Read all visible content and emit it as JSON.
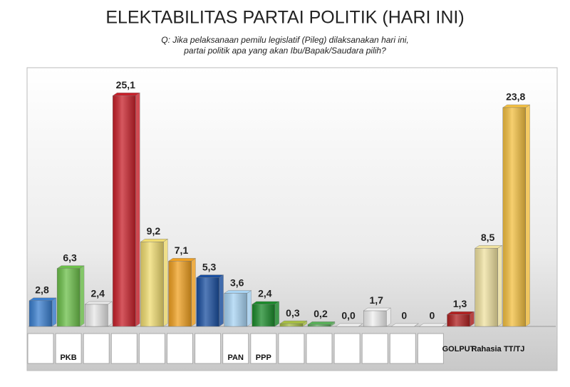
{
  "chart_data": {
    "type": "bar",
    "title": "ELEKTABILITAS PARTAI POLITIK (HARI INI)",
    "subtitle": [
      "Q: Jika pelaksanaan pemilu legislatif (Pileg) dilaksanakan hari ini,",
      "partai politik apa yang akan Ibu/Bapak/Saudara pilih?"
    ],
    "categories": [
      null,
      "PKB",
      null,
      null,
      null,
      null,
      null,
      "PAN",
      "PPP",
      null,
      null,
      null,
      null,
      null,
      null,
      "GOLPUT",
      "Rahasia",
      "TT/TJ"
    ],
    "values": [
      2.8,
      6.3,
      2.4,
      25.1,
      9.2,
      7.1,
      5.3,
      3.6,
      2.4,
      0.3,
      0.2,
      0.0,
      1.7,
      0,
      0,
      1.3,
      8.5,
      23.8
    ],
    "value_labels": [
      "2,8",
      "6,3",
      "2,4",
      "25,1",
      "9,2",
      "7,1",
      "5,3",
      "3,6",
      "2,4",
      "0,3",
      "0,2",
      "0,0",
      "1,7",
      "0",
      "0",
      "1,3",
      "8,5",
      "23,8"
    ],
    "colors": [
      "#3a7fd0",
      "#6cc04a",
      "#e8e8e8",
      "#c8202a",
      "#f0dc70",
      "#f0a020",
      "#1a4fa0",
      "#a8d4f4",
      "#1a8a2a",
      "#a8c040",
      "#58b058",
      "#f0f0f0",
      "#f0f0f0",
      "#f0f0f0",
      "#f0f0f0",
      "#b02020",
      "#f0e2a0",
      "#f4c040"
    ]
  }
}
